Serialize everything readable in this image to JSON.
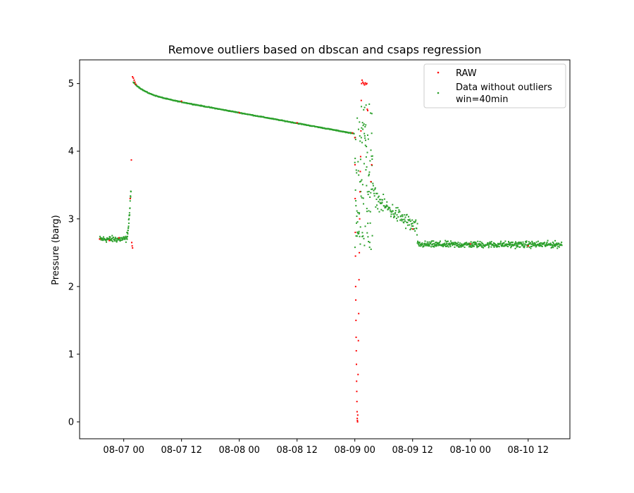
{
  "chart_data": {
    "type": "scatter",
    "title": "Remove outliers based on dbscan and csaps regression",
    "xlabel": "",
    "ylabel": "Pressure (barg)",
    "x_is_datetime": true,
    "xlim": [
      "2023-08-06 14:50",
      "2023-08-10 20:40"
    ],
    "ylim": [
      -0.25,
      5.35
    ],
    "x_ticks": [
      {
        "value": "2023-08-07 00:00",
        "label": "08-07 00"
      },
      {
        "value": "2023-08-07 12:00",
        "label": "08-07 12"
      },
      {
        "value": "2023-08-08 00:00",
        "label": "08-08 00"
      },
      {
        "value": "2023-08-08 12:00",
        "label": "08-08 12"
      },
      {
        "value": "2023-08-09 00:00",
        "label": "08-09 00"
      },
      {
        "value": "2023-08-09 12:00",
        "label": "08-09 12"
      },
      {
        "value": "2023-08-10 00:00",
        "label": "08-10 00"
      },
      {
        "value": "2023-08-10 12:00",
        "label": "08-10 12"
      }
    ],
    "y_ticks": [
      0,
      1,
      2,
      3,
      4,
      5
    ],
    "grid": false,
    "legend_position": "top-right",
    "series": [
      {
        "name": "RAW",
        "color": "#ff0000",
        "marker": "point",
        "points": [
          [
            "2023-08-06 19:00",
            2.7
          ],
          [
            "2023-08-06 21:00",
            2.68
          ],
          [
            "2023-08-06 23:00",
            2.72
          ],
          [
            "2023-08-07 01:20",
            3.3
          ],
          [
            "2023-08-07 01:40",
            2.65
          ],
          [
            "2023-08-07 01:45",
            2.6
          ],
          [
            "2023-08-07 01:50",
            2.57
          ],
          [
            "2023-08-07 01:35",
            3.87
          ],
          [
            "2023-08-07 01:50",
            5.1
          ],
          [
            "2023-08-07 02:00",
            5.08
          ],
          [
            "2023-08-07 02:10",
            5.05
          ],
          [
            "2023-08-07 02:20",
            5.02
          ],
          [
            "2023-08-07 02:30",
            4.99
          ],
          [
            "2023-08-07 12:00",
            4.74
          ],
          [
            "2023-08-08 00:00",
            4.57
          ],
          [
            "2023-08-08 12:00",
            4.42
          ],
          [
            "2023-08-08 23:30",
            4.27
          ],
          [
            "2023-08-09 00:00",
            4.2
          ],
          [
            "2023-08-09 00:02",
            3.8
          ],
          [
            "2023-08-09 00:04",
            3.3
          ],
          [
            "2023-08-09 00:06",
            2.8
          ],
          [
            "2023-08-09 00:08",
            2.45
          ],
          [
            "2023-08-09 00:10",
            2.0
          ],
          [
            "2023-08-09 00:12",
            1.8
          ],
          [
            "2023-08-09 00:14",
            1.5
          ],
          [
            "2023-08-09 00:16",
            1.25
          ],
          [
            "2023-08-09 00:18",
            1.05
          ],
          [
            "2023-08-09 00:20",
            0.85
          ],
          [
            "2023-08-09 00:22",
            0.6
          ],
          [
            "2023-08-09 00:24",
            0.45
          ],
          [
            "2023-08-09 00:26",
            0.3
          ],
          [
            "2023-08-09 00:28",
            0.15
          ],
          [
            "2023-08-09 00:30",
            0.05
          ],
          [
            "2023-08-09 00:32",
            0.02
          ],
          [
            "2023-08-09 00:34",
            0.0
          ],
          [
            "2023-08-09 00:36",
            0.1
          ],
          [
            "2023-08-09 00:40",
            0.7
          ],
          [
            "2023-08-09 00:44",
            1.2
          ],
          [
            "2023-08-09 00:48",
            1.6
          ],
          [
            "2023-08-09 00:52",
            2.1
          ],
          [
            "2023-08-09 00:56",
            2.5
          ],
          [
            "2023-08-09 01:00",
            3.0
          ],
          [
            "2023-08-09 01:04",
            3.4
          ],
          [
            "2023-08-09 01:08",
            3.7
          ],
          [
            "2023-08-09 01:12",
            3.92
          ],
          [
            "2023-08-09 01:16",
            4.3
          ],
          [
            "2023-08-09 01:20",
            4.75
          ],
          [
            "2023-08-09 01:24",
            5.0
          ],
          [
            "2023-08-09 01:30",
            5.05
          ],
          [
            "2023-08-09 01:40",
            5.02
          ],
          [
            "2023-08-09 01:50",
            5.0
          ],
          [
            "2023-08-09 02:00",
            4.98
          ],
          [
            "2023-08-09 02:10",
            5.01
          ],
          [
            "2023-08-09 02:20",
            4.99
          ],
          [
            "2023-08-09 02:30",
            5.0
          ],
          [
            "2023-08-09 02:35",
            4.62
          ],
          [
            "2023-08-09 02:40",
            4.6
          ],
          [
            "2023-08-09 03:20",
            3.55
          ],
          [
            "2023-08-09 03:30",
            3.8
          ],
          [
            "2023-08-09 12:00",
            2.85
          ],
          [
            "2023-08-10 00:00",
            2.63
          ],
          [
            "2023-08-10 12:00",
            2.6
          ]
        ]
      },
      {
        "name": "Data without outliers\nwin=40min",
        "color": "#2ca02c",
        "marker": "point",
        "segments": [
          {
            "from": "2023-08-06 19:00",
            "to": "2023-08-07 00:40",
            "level": 2.7,
            "noise": 0.07
          },
          {
            "ramp_from": "2023-08-07 00:40",
            "ramp_to": "2023-08-07 01:30",
            "start": 2.75,
            "peak": 3.42
          },
          {
            "decay_from": "2023-08-07 02:00",
            "decay_to": "2023-08-08 23:50",
            "start": 5.02,
            "end": 4.26
          },
          {
            "burst": [
              "2023-08-09 00:00",
              "2023-08-09 03:40"
            ],
            "low": 2.55,
            "high": 4.7
          },
          {
            "decay_from": "2023-08-09 03:40",
            "decay_to": "2023-08-09 13:00",
            "start": 3.45,
            "end": 2.85,
            "noise": 0.18
          },
          {
            "from": "2023-08-09 13:00",
            "to": "2023-08-10 19:00",
            "level": 2.62,
            "noise": 0.07
          }
        ]
      }
    ],
    "legend_entries": [
      "RAW",
      "Data without outliers",
      "win=40min"
    ]
  }
}
